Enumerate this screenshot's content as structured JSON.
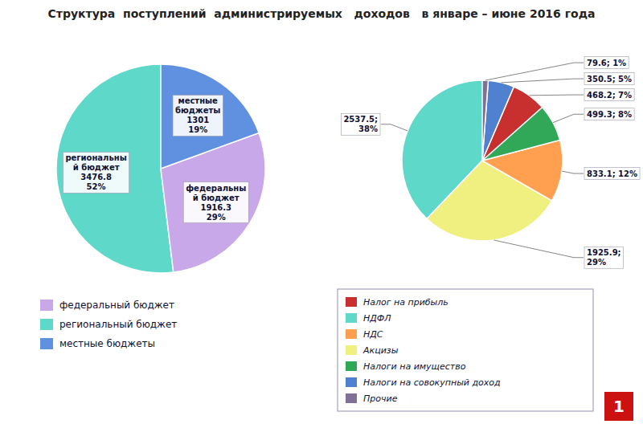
{
  "chart_data": [
    {
      "type": "pie",
      "title": "Структура  поступлений  администрируемых   доходов   в январе – июне 2016 года",
      "categories": [
        "региональны\nй бюджет",
        "федеральны\nй бюджет",
        "местные\nбюджеты"
      ],
      "values": [
        3476.8,
        1916.3,
        1301.0
      ],
      "percents": [
        52,
        29,
        19
      ],
      "value_labels": [
        "3476.8\n52%",
        "1916.3\n29%",
        "1301\n19%"
      ],
      "colors": [
        "#5ed8c8",
        "#c8a8e8",
        "#6090e0"
      ],
      "data_labels": true,
      "legend_entries": [
        {
          "name": "федеральный бюджет",
          "color": "#c8a8e8"
        },
        {
          "name": "региональный бюджет",
          "color": "#5ed8c8"
        },
        {
          "name": "местные бюджеты",
          "color": "#6090e0"
        }
      ]
    },
    {
      "type": "pie",
      "values": [
        2537.5,
        1925.9,
        833.1,
        499.3,
        468.2,
        350.5,
        79.6
      ],
      "percents": [
        38,
        29,
        12,
        8,
        7,
        5,
        1
      ],
      "value_labels": [
        "2537.5;\n38%",
        "1925.9;\n29%",
        "833.1; 12%",
        "499.3; 8%",
        "468.2; 7%",
        "350.5; 5%",
        "79.6; 1%"
      ],
      "colors": [
        "#5ed8c8",
        "#f0f080",
        "#ffa050",
        "#30a858",
        "#c83030",
        "#5080d0",
        "#807098"
      ],
      "data_labels": true,
      "legend_entries": [
        {
          "name": "Налог на прибыль",
          "color": "#c83030"
        },
        {
          "name": "НДФЛ",
          "color": "#5ed8c8"
        },
        {
          "name": "НДС",
          "color": "#ffa050"
        },
        {
          "name": "Акцизы",
          "color": "#f0f080"
        },
        {
          "name": "Налоги на имущество",
          "color": "#30a858"
        },
        {
          "name": "Налоги на совокупный доход",
          "color": "#5080d0"
        },
        {
          "name": "Прочие",
          "color": "#807098"
        }
      ],
      "annotations": [
        "1"
      ]
    }
  ]
}
